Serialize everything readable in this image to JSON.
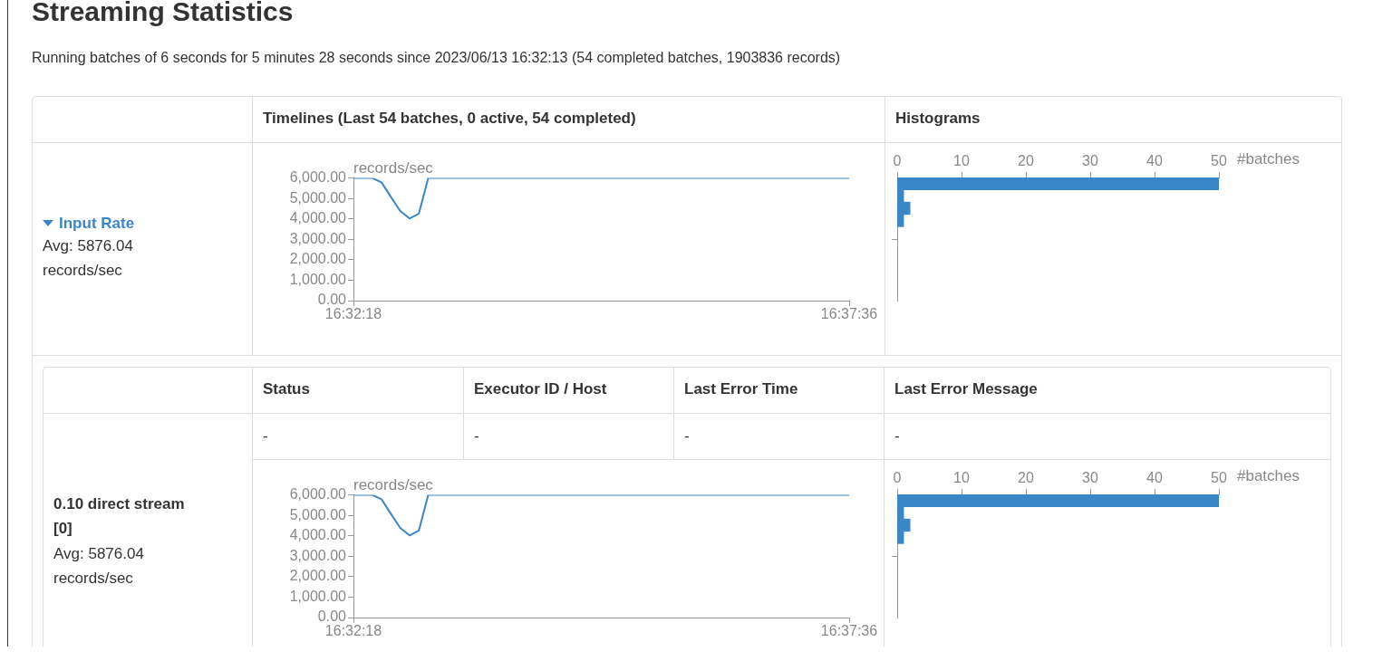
{
  "chart_data": [
    {
      "type": "other",
      "title": "Streaming Statistics",
      "subtitle": "Running batches of 6 seconds for 5 minutes 28 seconds since 2023/06/13 16:32:13 (54 completed batches, 1903836 records)",
      "annotations": [
        "Timelines (Last 54 batches, 0 active, 54 completed)",
        "Histograms",
        "Status",
        "Executor ID / Host",
        "Last Error Time",
        "Last Error Message",
        "-",
        "-",
        "-",
        "-",
        "Input Rate",
        "Avg: 5876.04 records/sec",
        "0.10 direct stream [0]",
        "Avg: 5876.04 records/sec"
      ]
    },
    {
      "type": "line",
      "ylabel": "records/sec",
      "color": "#3a87c8",
      "marker": "none",
      "grid": false,
      "categories": [
        "16:32:18",
        null,
        null,
        null,
        null,
        null,
        null,
        null,
        null,
        null,
        null,
        null,
        null,
        null,
        null,
        null,
        null,
        null,
        null,
        null,
        null,
        null,
        null,
        null,
        null,
        null,
        null,
        null,
        null,
        null,
        null,
        null,
        null,
        null,
        null,
        null,
        null,
        null,
        null,
        null,
        null,
        null,
        null,
        null,
        null,
        null,
        null,
        null,
        null,
        null,
        null,
        null,
        null,
        "16:37:36"
      ],
      "values": [
        6000,
        6000,
        6000,
        5790,
        5080,
        4390,
        4020,
        4260,
        6000,
        6000,
        6000,
        6000,
        6000,
        6000,
        6000,
        6000,
        6000,
        6000,
        6000,
        6000,
        6000,
        6000,
        6000,
        6000,
        6000,
        6000,
        6000,
        6000,
        6000,
        6000,
        6000,
        6000,
        6000,
        6000,
        6000,
        6000,
        6000,
        6000,
        6000,
        6000,
        6000,
        6000,
        6000,
        6000,
        6000,
        6000,
        6000,
        6000,
        6000,
        6000,
        6000,
        6000,
        6000,
        6000
      ],
      "ylim": [
        0,
        6000
      ],
      "yticks": [
        {
          "value": 0,
          "label": "0.00"
        },
        {
          "value": 1000,
          "label": "1,000.00"
        },
        {
          "value": 2000,
          "label": "2,000.00"
        },
        {
          "value": 3000,
          "label": "3,000.00"
        },
        {
          "value": 4000,
          "label": "4,000.00"
        },
        {
          "value": 5000,
          "label": "5,000.00"
        },
        {
          "value": 6000,
          "label": "6,000.00"
        }
      ]
    },
    {
      "type": "histogram",
      "orientation": "horizontal",
      "xlabel": "#batches",
      "color": "#3a87c8",
      "grid": false,
      "tick_labels": "x",
      "bins": [
        3600,
        4200,
        4800,
        5400,
        6000
      ],
      "values": [
        1,
        2,
        1,
        50
      ],
      "xlim": [
        0,
        50
      ],
      "xticks": [
        0,
        10,
        20,
        30,
        40,
        50
      ],
      "ylim": [
        0,
        6000
      ]
    },
    {
      "type": "line",
      "ylabel": "records/sec",
      "color": "#3a87c8",
      "marker": "none",
      "grid": false,
      "categories": [
        "16:32:18",
        null,
        null,
        null,
        null,
        null,
        null,
        null,
        null,
        null,
        null,
        null,
        null,
        null,
        null,
        null,
        null,
        null,
        null,
        null,
        null,
        null,
        null,
        null,
        null,
        null,
        null,
        null,
        null,
        null,
        null,
        null,
        null,
        null,
        null,
        null,
        null,
        null,
        null,
        null,
        null,
        null,
        null,
        null,
        null,
        null,
        null,
        null,
        null,
        null,
        null,
        null,
        null,
        "16:37:36"
      ],
      "values": [
        6000,
        6000,
        6000,
        5790,
        5080,
        4390,
        4020,
        4260,
        6000,
        6000,
        6000,
        6000,
        6000,
        6000,
        6000,
        6000,
        6000,
        6000,
        6000,
        6000,
        6000,
        6000,
        6000,
        6000,
        6000,
        6000,
        6000,
        6000,
        6000,
        6000,
        6000,
        6000,
        6000,
        6000,
        6000,
        6000,
        6000,
        6000,
        6000,
        6000,
        6000,
        6000,
        6000,
        6000,
        6000,
        6000,
        6000,
        6000,
        6000,
        6000,
        6000,
        6000,
        6000,
        6000
      ],
      "ylim": [
        0,
        6000
      ],
      "yticks": [
        {
          "value": 0,
          "label": "0.00"
        },
        {
          "value": 1000,
          "label": "1,000.00"
        },
        {
          "value": 2000,
          "label": "2,000.00"
        },
        {
          "value": 3000,
          "label": "3,000.00"
        },
        {
          "value": 4000,
          "label": "4,000.00"
        },
        {
          "value": 5000,
          "label": "5,000.00"
        },
        {
          "value": 6000,
          "label": "6,000.00"
        }
      ]
    },
    {
      "type": "histogram",
      "orientation": "horizontal",
      "xlabel": "#batches",
      "color": "#3a87c8",
      "grid": false,
      "tick_labels": "x",
      "bins": [
        3600,
        4200,
        4800,
        5400,
        6000
      ],
      "values": [
        1,
        2,
        1,
        50
      ],
      "xlim": [
        0,
        50
      ],
      "xticks": [
        0,
        10,
        20,
        30,
        40,
        50
      ],
      "ylim": [
        0,
        6000
      ]
    }
  ]
}
